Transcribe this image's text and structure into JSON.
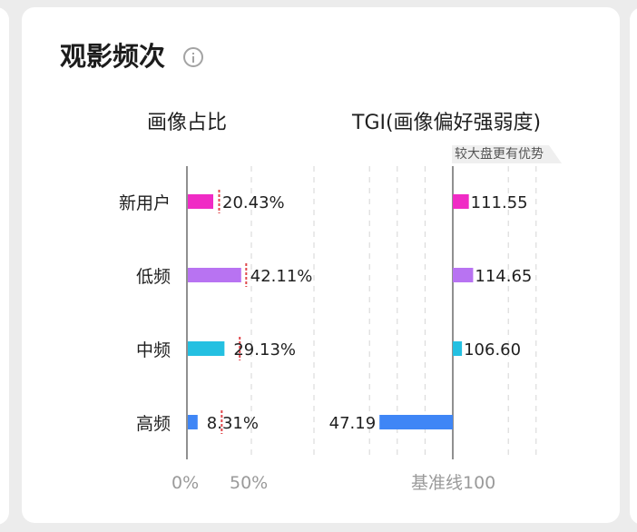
{
  "card": {
    "title": "观影频次",
    "info_icon": "info-circle-icon"
  },
  "left_panel": {
    "title": "画像占比",
    "tick_labels": [
      "0%",
      "50%"
    ]
  },
  "right_panel": {
    "title": "TGI(画像偏好强弱度)",
    "baseline_label": "基准线100",
    "tag": "较大盘更有优势"
  },
  "chart_data": [
    {
      "type": "bar",
      "orientation": "horizontal",
      "title": "画像占比",
      "categories": [
        "新用户",
        "低频",
        "中频",
        "高频"
      ],
      "values": [
        20.43,
        42.11,
        29.13,
        8.31
      ],
      "value_labels": [
        "20.43%",
        "42.11%",
        "29.13%",
        "8.31%"
      ],
      "reference_marks": [
        25,
        46,
        41,
        27
      ],
      "bar_colors": [
        "#f02bc5",
        "#b873f2",
        "#24c0e1",
        "#3f86f6"
      ],
      "reference_mark_color": "#e0474c",
      "xlim": [
        0,
        100
      ],
      "grid": true
    },
    {
      "type": "bar",
      "orientation": "horizontal",
      "title": "TGI(画像偏好强弱度)",
      "categories": [
        "新用户",
        "低频",
        "中频",
        "高频"
      ],
      "values": [
        111.55,
        114.65,
        106.6,
        47.19
      ],
      "value_labels": [
        "111.55",
        "114.65",
        "106.60",
        "47.19"
      ],
      "baseline": 100,
      "bar_colors": [
        "#f02bc5",
        "#b873f2",
        "#24c0e1",
        "#3f86f6"
      ],
      "xlim": [
        0,
        200
      ],
      "grid": true
    }
  ]
}
